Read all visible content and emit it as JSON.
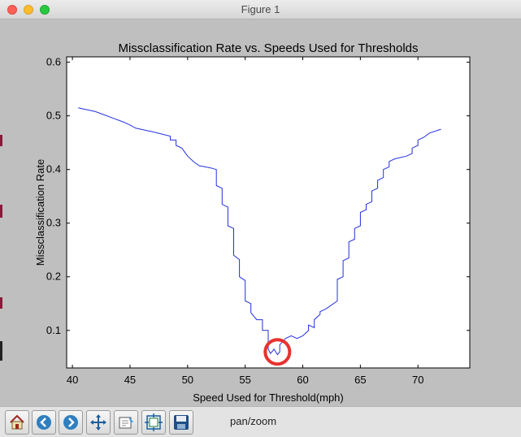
{
  "window": {
    "title": "Figure 1"
  },
  "toolbar": {
    "buttons": [
      {
        "name": "home-button",
        "icon": "home-icon"
      },
      {
        "name": "back-button",
        "icon": "back-arrow-icon"
      },
      {
        "name": "forward-button",
        "icon": "forward-arrow-icon"
      },
      {
        "name": "pan-button",
        "icon": "pan-arrows-icon"
      },
      {
        "name": "zoom-rect-button",
        "icon": "zoom-rect-icon"
      },
      {
        "name": "subplots-button",
        "icon": "subplots-icon"
      },
      {
        "name": "save-button",
        "icon": "save-floppy-icon"
      }
    ],
    "status": "pan/zoom"
  },
  "colors": {
    "line": "#2430e0",
    "marker": "#e8322f",
    "plot_bg": "#ffffff",
    "figure_bg": "#bfbfbf"
  },
  "chart_data": {
    "type": "line",
    "title": "Missclassification Rate vs. Speeds Used for Thresholds",
    "xlabel": "Speed Used for Threshold(mph)",
    "ylabel": "Missclassification Rate",
    "xlim": [
      39.5,
      74.5
    ],
    "ylim": [
      0.03,
      0.61
    ],
    "xticks": [
      40,
      45,
      50,
      55,
      60,
      65,
      70
    ],
    "yticks": [
      0.1,
      0.2,
      0.3,
      0.4,
      0.5,
      0.6
    ],
    "ytick_labels": [
      "0.1",
      "0.2",
      "0.3",
      "0.4",
      "0.5",
      "0.6"
    ],
    "grid": false,
    "series": [
      {
        "x": [
          40.5,
          42.0,
          43.5,
          44.5,
          45.0,
          45.5,
          47.0,
          48.5,
          48.5,
          49.0,
          49.0,
          49.5,
          50.0,
          50.5,
          51.0,
          52.0,
          52.5,
          52.5,
          53.0,
          53.0,
          53.5,
          53.5,
          54.0,
          54.0,
          54.5,
          54.5,
          55.0,
          55.0,
          55.5,
          55.5,
          56.0,
          56.5,
          56.5,
          57.0,
          57.0,
          57.2,
          57.5,
          57.8,
          58.0,
          58.0,
          58.5,
          59.0,
          59.5,
          60.0,
          60.5,
          60.5,
          61.0,
          61.0,
          61.5,
          61.5,
          62.0,
          63.0,
          63.0,
          63.5,
          63.5,
          64.0,
          64.0,
          64.5,
          64.5,
          65.0,
          65.0,
          65.5,
          65.5,
          66.0,
          66.0,
          66.5,
          66.5,
          67.0,
          67.0,
          67.5,
          67.5,
          68.0,
          69.0,
          69.5,
          69.5,
          70.0,
          70.0,
          70.5,
          71.0,
          72.0
        ],
        "y": [
          0.515,
          0.508,
          0.496,
          0.488,
          0.483,
          0.477,
          0.47,
          0.462,
          0.455,
          0.455,
          0.445,
          0.44,
          0.425,
          0.415,
          0.407,
          0.403,
          0.4,
          0.37,
          0.365,
          0.335,
          0.33,
          0.295,
          0.29,
          0.24,
          0.232,
          0.2,
          0.193,
          0.155,
          0.15,
          0.133,
          0.12,
          0.12,
          0.1,
          0.1,
          0.065,
          0.057,
          0.065,
          0.055,
          0.06,
          0.073,
          0.085,
          0.09,
          0.085,
          0.09,
          0.1,
          0.11,
          0.105,
          0.12,
          0.13,
          0.135,
          0.14,
          0.155,
          0.195,
          0.2,
          0.23,
          0.235,
          0.265,
          0.27,
          0.29,
          0.295,
          0.32,
          0.325,
          0.335,
          0.34,
          0.36,
          0.365,
          0.38,
          0.385,
          0.4,
          0.405,
          0.415,
          0.42,
          0.425,
          0.43,
          0.44,
          0.445,
          0.455,
          0.46,
          0.468,
          0.475
        ]
      }
    ],
    "annotation": {
      "type": "circle",
      "x": 57.8,
      "y": 0.06
    }
  }
}
